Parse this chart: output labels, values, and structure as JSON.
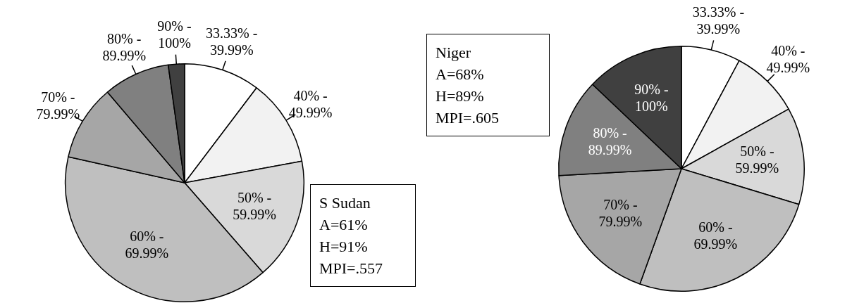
{
  "chart_data": [
    {
      "type": "pie",
      "categories": [
        "33.33% - 39.99%",
        "40% - 49.99%",
        "50% - 59.99%",
        "60% - 69.99%",
        "70% - 79.99%",
        "80% - 89.99%",
        "90% - 100%"
      ],
      "values": [
        10.3,
        11.8,
        16.5,
        39.9,
        10.3,
        9,
        2.2
      ],
      "colors": [
        "#ffffff",
        "#f2f2f2",
        "#d9d9d9",
        "#bfbfbf",
        "#a6a6a6",
        "#808080",
        "#404040"
      ],
      "annotations": [
        "S Sudan",
        "A=61%",
        "H=91%",
        "MPI=.557"
      ]
    },
    {
      "type": "pie",
      "categories": [
        "33.33% - 39.99%",
        "40% - 49.99%",
        "50% - 59.99%",
        "60% - 69.99%",
        "70% - 79.99%",
        "80% - 89.99%",
        "90% - 100%"
      ],
      "values": [
        7.8,
        9.1,
        12.8,
        25.8,
        18.6,
        13,
        12.9
      ],
      "colors": [
        "#ffffff",
        "#f2f2f2",
        "#d9d9d9",
        "#bfbfbf",
        "#a6a6a6",
        "#808080",
        "#404040"
      ],
      "annotations": [
        "Niger",
        "A=68%",
        "H=89%",
        "MPI=.605"
      ]
    }
  ]
}
